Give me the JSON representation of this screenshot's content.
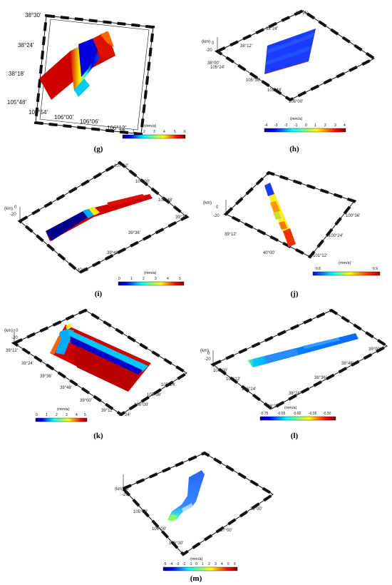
{
  "panels": [
    {
      "id": "g",
      "label": "(g)",
      "ticks": [
        "38°30'",
        "38°24'",
        "38°18'",
        "105°48'",
        "105°54'",
        "106°00'",
        "106°06'",
        "106°12'"
      ],
      "colorbar": {
        "unit": "(mm/a)",
        "ticks": [
          "0",
          "1",
          "2",
          "3",
          "4",
          "5",
          "6"
        ]
      }
    },
    {
      "id": "h",
      "label": "(h)",
      "ticks": [
        "38°36'",
        "38°24'",
        "38°12'",
        "38°00'",
        "105°24'",
        "105°36'",
        "105°48'",
        "106°00'",
        "(km)",
        "0",
        "-20"
      ],
      "colorbar": {
        "unit": "(mm/a)",
        "ticks": [
          "-4",
          "-3",
          "-2",
          "-1",
          "0",
          "1",
          "2",
          "3",
          "4"
        ]
      }
    },
    {
      "id": "i",
      "label": "(i)",
      "ticks": [
        "107°12'",
        "107°00'",
        "106°48'",
        "39°24'",
        "39°36'",
        "39°48'",
        "40°00'",
        "(km)",
        "0",
        "-20"
      ],
      "colorbar": {
        "unit": "(mm/a)",
        "ticks": [
          "0",
          "1",
          "2",
          "3",
          "4",
          "5"
        ]
      }
    },
    {
      "id": "j",
      "label": "(j)",
      "ticks": [
        "(km)",
        "0",
        "-20",
        "39°12'",
        "40°00'",
        "100°36'",
        "100°24'",
        "101°12'"
      ],
      "colorbar": {
        "unit": "(mm/a)",
        "ticks": [
          "0.8",
          "0.9"
        ]
      }
    },
    {
      "id": "k",
      "label": "(k)",
      "ticks": [
        "(km)",
        "0",
        "-20",
        "39°12'",
        "39°24'",
        "39°36'",
        "39°48'",
        "39°00'",
        "39°12'",
        "39°24'",
        "105°24'",
        "105°36'",
        "106°00'"
      ],
      "colorbar": {
        "unit": "(mm/a)",
        "ticks": [
          "0",
          "1",
          "2",
          "3",
          "4",
          "5"
        ]
      }
    },
    {
      "id": "l",
      "label": "(l)",
      "ticks": [
        "(km)",
        "0",
        "-20",
        "106°00'",
        "106°12'",
        "106°24'",
        "38°12'",
        "38°24'",
        "38°36'",
        "38°48'",
        "39°00'"
      ],
      "colorbar": {
        "unit": "(mm/a)",
        "ticks": [
          "-0.75",
          "-0.65",
          "-0.60",
          "-0.55",
          "-0.50"
        ]
      }
    },
    {
      "id": "m",
      "label": "(m)",
      "ticks": [
        "(km)",
        "0",
        "-20",
        "105°00'",
        "106°00'",
        "106°30'",
        "37°00'",
        "36°00'"
      ],
      "colorbar": {
        "unit": "(mm/a)",
        "ticks": [
          "-5",
          "-4",
          "-3",
          "-2",
          "-1",
          "0",
          "1",
          "2",
          "3",
          "4",
          "5",
          "6"
        ]
      }
    }
  ],
  "colors": {
    "jet": [
      "#00007f",
      "#0000ff",
      "#0080ff",
      "#00ffff",
      "#80ff80",
      "#ffff00",
      "#ff8000",
      "#ff0000",
      "#7f0000"
    ],
    "frame": "#111111"
  }
}
